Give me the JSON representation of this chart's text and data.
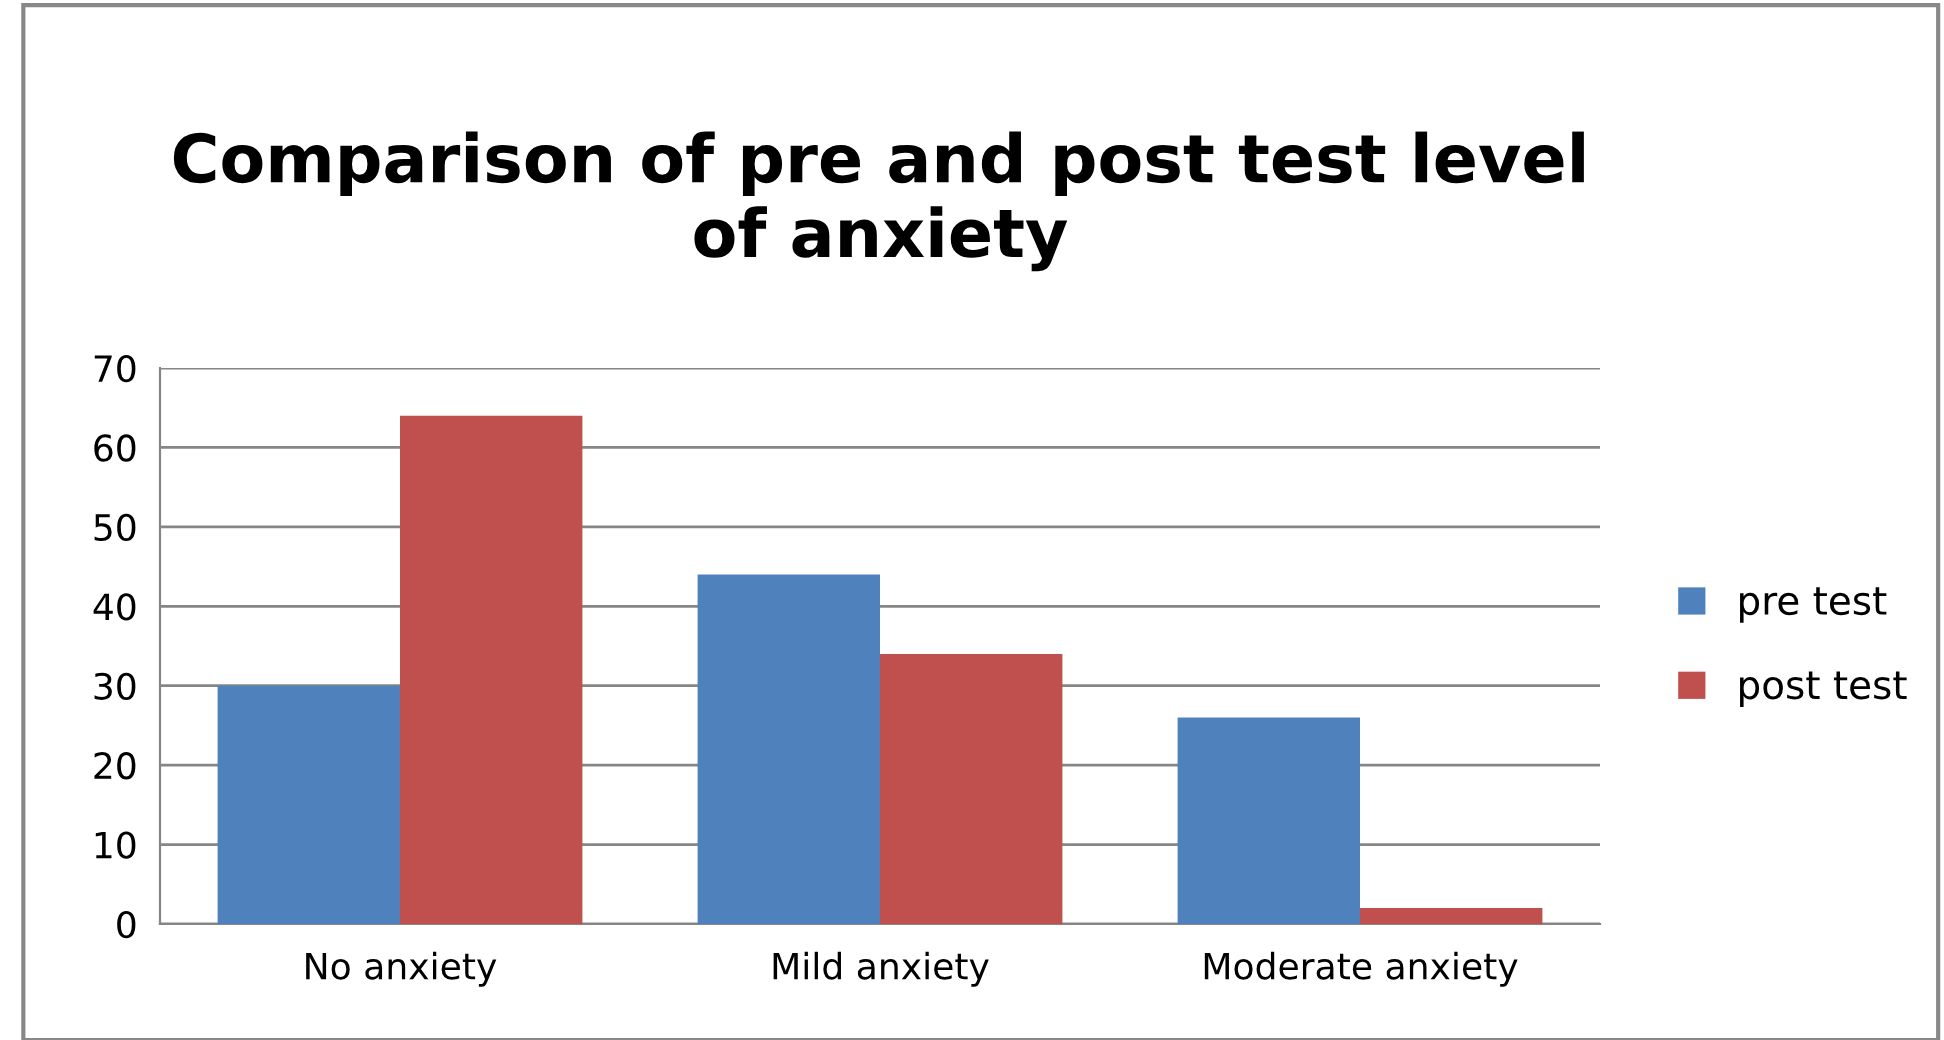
{
  "chart_data": {
    "type": "bar",
    "title": "Comparison of pre and post test level\nof anxiety",
    "categories": [
      "No anxiety",
      "Mild anxiety",
      "Moderate anxiety"
    ],
    "series": [
      {
        "name": "pre test",
        "color": "#4f81bd",
        "values": [
          30,
          44,
          26
        ]
      },
      {
        "name": "post test",
        "color": "#c0504d",
        "values": [
          64,
          34,
          2
        ]
      }
    ],
    "ylim": [
      0,
      70
    ],
    "yticks": [
      0,
      10,
      20,
      30,
      40,
      50,
      60,
      70
    ],
    "grid": "y",
    "legend": "right"
  }
}
